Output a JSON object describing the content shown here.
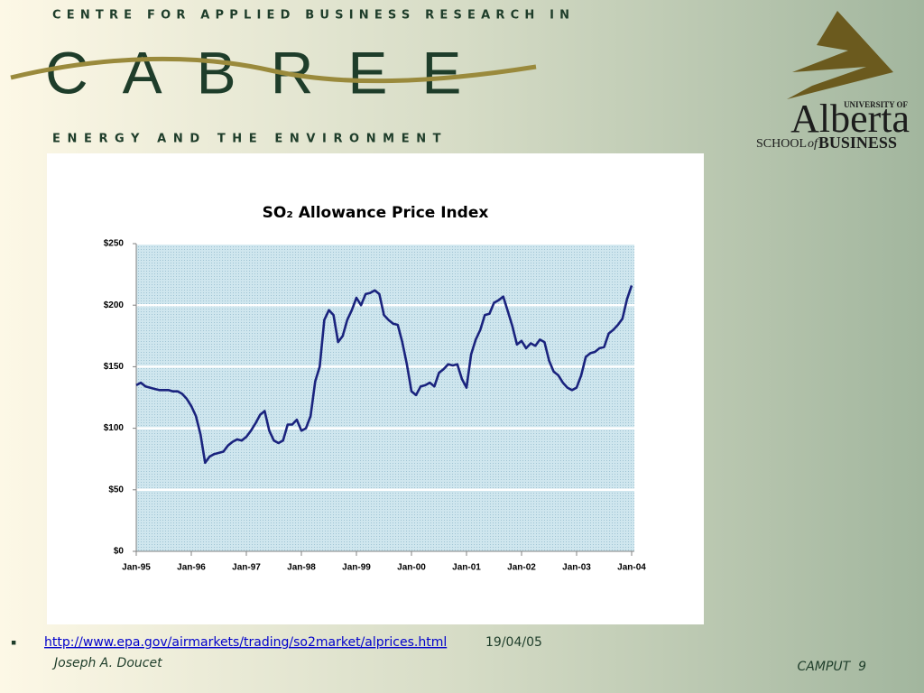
{
  "header": {
    "top_line": "CENTRE FOR APPLIED BUSINESS RESEARCH IN",
    "logo": "CABREE",
    "bottom_line": "ENERGY AND THE ENVIRONMENT"
  },
  "university_logo": {
    "top": "UNIVERSITY OF",
    "name": "Alberta",
    "school": "SCHOOL",
    "of": "of",
    "business": "BUSINESS"
  },
  "chart_data": {
    "type": "line",
    "title": "SO₂ Allowance Price Index",
    "x": [
      "1995-01",
      "1995-02",
      "1995-03",
      "1995-04",
      "1995-05",
      "1995-06",
      "1995-07",
      "1995-08",
      "1995-09",
      "1995-10",
      "1995-11",
      "1995-12",
      "1996-01",
      "1996-02",
      "1996-03",
      "1996-04",
      "1996-05",
      "1996-06",
      "1996-07",
      "1996-08",
      "1996-09",
      "1996-10",
      "1996-11",
      "1996-12",
      "1997-01",
      "1997-02",
      "1997-03",
      "1997-04",
      "1997-05",
      "1997-06",
      "1997-07",
      "1997-08",
      "1997-09",
      "1997-10",
      "1997-11",
      "1997-12",
      "1998-01",
      "1998-02",
      "1998-03",
      "1998-04",
      "1998-05",
      "1998-06",
      "1998-07",
      "1998-08",
      "1998-09",
      "1998-10",
      "1998-11",
      "1998-12",
      "1999-01",
      "1999-02",
      "1999-03",
      "1999-04",
      "1999-05",
      "1999-06",
      "1999-07",
      "1999-08",
      "1999-09",
      "1999-10",
      "1999-11",
      "1999-12",
      "2000-01",
      "2000-02",
      "2000-03",
      "2000-04",
      "2000-05",
      "2000-06",
      "2000-07",
      "2000-08",
      "2000-09",
      "2000-10",
      "2000-11",
      "2000-12",
      "2001-01",
      "2001-02",
      "2001-03",
      "2001-04",
      "2001-05",
      "2001-06",
      "2001-07",
      "2001-08",
      "2001-09",
      "2001-10",
      "2001-11",
      "2001-12",
      "2002-01",
      "2002-02",
      "2002-03",
      "2002-04",
      "2002-05",
      "2002-06",
      "2002-07",
      "2002-08",
      "2002-09",
      "2002-10",
      "2002-11",
      "2002-12",
      "2003-01",
      "2003-02",
      "2003-03",
      "2003-04",
      "2003-05",
      "2003-06",
      "2003-07",
      "2003-08",
      "2003-09",
      "2003-10",
      "2003-11",
      "2003-12",
      "2004-01"
    ],
    "series": [
      {
        "name": "SO₂ Allowance Price Index",
        "color": "#1a237e",
        "values": [
          135,
          137,
          134,
          133,
          132,
          131,
          131,
          131,
          130,
          130,
          128,
          124,
          118,
          110,
          95,
          72,
          77,
          79,
          80,
          81,
          86,
          89,
          91,
          90,
          93,
          98,
          104,
          111,
          114,
          98,
          90,
          88,
          90,
          103,
          103,
          107,
          98,
          100,
          110,
          138,
          150,
          188,
          196,
          192,
          170,
          175,
          188,
          196,
          206,
          200,
          209,
          210,
          212,
          209,
          192,
          188,
          185,
          184,
          170,
          152,
          130,
          127,
          134,
          135,
          137,
          134,
          145,
          148,
          152,
          151,
          152,
          140,
          133,
          160,
          172,
          180,
          192,
          193,
          202,
          204,
          207,
          195,
          183,
          168,
          171,
          165,
          169,
          167,
          172,
          170,
          155,
          146,
          143,
          137,
          133,
          131,
          133,
          143,
          158,
          161,
          162,
          165,
          166,
          177,
          180,
          184,
          189,
          205,
          216
        ]
      }
    ],
    "xlim": [
      "1995-01",
      "2004-01"
    ],
    "xticks": [
      {
        "value": "1995-01",
        "label": "Jan-95"
      },
      {
        "value": "1996-01",
        "label": "Jan-96"
      },
      {
        "value": "1997-01",
        "label": "Jan-97"
      },
      {
        "value": "1998-01",
        "label": "Jan-98"
      },
      {
        "value": "1999-01",
        "label": "Jan-99"
      },
      {
        "value": "2000-01",
        "label": "Jan-00"
      },
      {
        "value": "2001-01",
        "label": "Jan-01"
      },
      {
        "value": "2002-01",
        "label": "Jan-02"
      },
      {
        "value": "2003-01",
        "label": "Jan-03"
      },
      {
        "value": "2004-01",
        "label": "Jan-04"
      }
    ],
    "ylim": [
      0,
      250
    ],
    "yticks": [
      {
        "value": 0,
        "label": "$0"
      },
      {
        "value": 50,
        "label": "$50"
      },
      {
        "value": 100,
        "label": "$100"
      },
      {
        "value": 150,
        "label": "$150"
      },
      {
        "value": 200,
        "label": "$200"
      },
      {
        "value": 250,
        "label": "$250"
      }
    ],
    "grid": true
  },
  "footer": {
    "link": "http://www.epa.gov/airmarkets/trading/so2market/alprices.html",
    "date": "19/04/05",
    "author": "Joseph A. Doucet",
    "slide_label": "CAMPUT  9"
  }
}
